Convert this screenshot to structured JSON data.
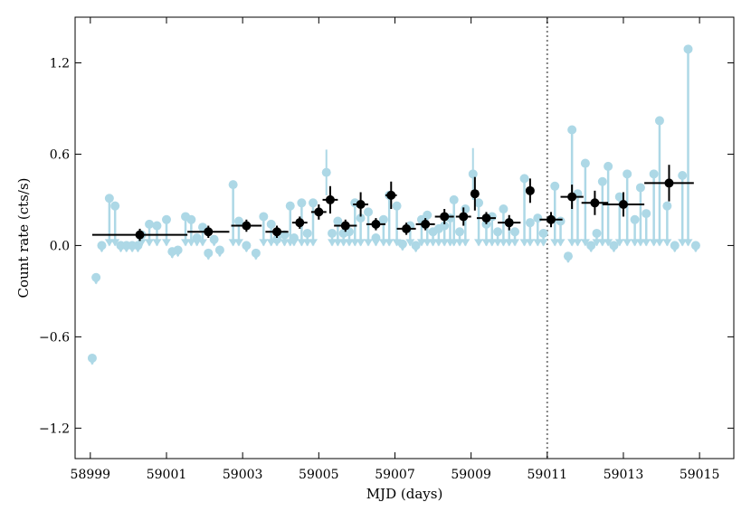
{
  "chart_data": {
    "type": "scatter",
    "title": "",
    "xlabel": "MJD (days)",
    "ylabel": "Count rate (cts/s)",
    "xlim": [
      58998.6,
      59015.9
    ],
    "ylim": [
      -1.4,
      1.5
    ],
    "xticks": [
      58999,
      59001,
      59003,
      59005,
      59007,
      59009,
      59011,
      59013,
      59015
    ],
    "xtick_labels": [
      "58999",
      "59001",
      "59003",
      "59005",
      "59007",
      "59009",
      "59011",
      "59013",
      "59015"
    ],
    "yticks": [
      -1.2,
      -0.6,
      0.0,
      0.6,
      1.2
    ],
    "ytick_labels": [
      "−1.2",
      "−0.6",
      "0.0",
      "0.6",
      "1.2"
    ],
    "vline_x": 59011,
    "colors": {
      "light": "#add8e6",
      "dark": "#000000",
      "vline": "#808080"
    },
    "series": [
      {
        "marker": "light-blue upper-limit points (downward arrows)",
        "points": [
          {
            "x": 59000.45,
            "y": 0.0,
            "limit": true
          },
          {
            "x": 59000.6,
            "y": 0.0,
            "limit": true
          },
          {
            "x": 59000.75,
            "y": 0.0,
            "limit": true
          },
          {
            "x": 59000.9,
            "y": 0.0,
            "limit": true
          }
        ]
      }
    ],
    "light_points": [
      {
        "x": 59000.55,
        "y": 0.0
      }
    ],
    "binned_points": [
      {
        "x": 59000.3,
        "y": 0.07,
        "xerr": 1.25,
        "yerr": 0.04
      },
      {
        "x": 59002.1,
        "y": 0.09,
        "xerr": 0.55,
        "yerr": 0.04
      },
      {
        "x": 59003.1,
        "y": 0.13,
        "xerr": 0.4,
        "yerr": 0.04
      },
      {
        "x": 59003.9,
        "y": 0.09,
        "xerr": 0.3,
        "yerr": 0.04
      },
      {
        "x": 59004.5,
        "y": 0.15,
        "xerr": 0.2,
        "yerr": 0.04
      },
      {
        "x": 59005.0,
        "y": 0.22,
        "xerr": 0.2,
        "yerr": 0.05
      },
      {
        "x": 59005.3,
        "y": 0.3,
        "xerr": 0.2,
        "yerr": 0.09
      },
      {
        "x": 59005.7,
        "y": 0.13,
        "xerr": 0.3,
        "yerr": 0.04
      },
      {
        "x": 59006.1,
        "y": 0.27,
        "xerr": 0.2,
        "yerr": 0.08
      },
      {
        "x": 59006.5,
        "y": 0.14,
        "xerr": 0.25,
        "yerr": 0.04
      },
      {
        "x": 59006.9,
        "y": 0.33,
        "xerr": 0.15,
        "yerr": 0.09
      },
      {
        "x": 59007.3,
        "y": 0.11,
        "xerr": 0.25,
        "yerr": 0.04
      },
      {
        "x": 59007.8,
        "y": 0.14,
        "xerr": 0.25,
        "yerr": 0.04
      },
      {
        "x": 59008.3,
        "y": 0.19,
        "xerr": 0.25,
        "yerr": 0.05
      },
      {
        "x": 59008.8,
        "y": 0.19,
        "xerr": 0.2,
        "yerr": 0.06
      },
      {
        "x": 59009.1,
        "y": 0.34,
        "xerr": 0.1,
        "yerr": 0.11
      },
      {
        "x": 59009.4,
        "y": 0.18,
        "xerr": 0.25,
        "yerr": 0.04
      },
      {
        "x": 59010.0,
        "y": 0.15,
        "xerr": 0.3,
        "yerr": 0.05
      },
      {
        "x": 59010.55,
        "y": 0.36,
        "xerr": 0.1,
        "yerr": 0.08
      },
      {
        "x": 59011.1,
        "y": 0.17,
        "xerr": 0.3,
        "yerr": 0.05
      },
      {
        "x": 59011.65,
        "y": 0.32,
        "xerr": 0.3,
        "yerr": 0.08
      },
      {
        "x": 59012.25,
        "y": 0.28,
        "xerr": 0.35,
        "yerr": 0.08
      },
      {
        "x": 59013.0,
        "y": 0.27,
        "xerr": 0.55,
        "yerr": 0.08
      },
      {
        "x": 59014.2,
        "y": 0.41,
        "xerr": 0.65,
        "yerr": 0.12
      }
    ],
    "raw_points": [
      {
        "x": 58999.05,
        "y": -0.74,
        "type": "ul"
      },
      {
        "x": 58999.15,
        "y": -0.21,
        "type": "ul"
      },
      {
        "x": 58999.3,
        "y": 0.0,
        "type": "ul"
      },
      {
        "x": 58999.5,
        "y": 0.31,
        "type": "ul"
      },
      {
        "x": 58999.65,
        "y": 0.26,
        "type": "ul"
      },
      {
        "x": 58999.8,
        "y": 0.0,
        "type": "ul"
      },
      {
        "x": 58999.95,
        "y": 0.0,
        "type": "ul"
      },
      {
        "x": 59000.1,
        "y": 0.0,
        "type": "ul"
      },
      {
        "x": 59000.25,
        "y": 0.0,
        "type": "ul"
      },
      {
        "x": 59000.35,
        "y": 0.07,
        "type": "ul"
      },
      {
        "x": 59000.55,
        "y": 0.14,
        "type": "ul"
      },
      {
        "x": 59000.75,
        "y": 0.13,
        "type": "ul"
      },
      {
        "x": 59001.0,
        "y": 0.17,
        "type": "ul"
      },
      {
        "x": 59001.15,
        "y": -0.04,
        "type": "ul"
      },
      {
        "x": 59001.3,
        "y": -0.03,
        "type": "ul"
      },
      {
        "x": 59001.5,
        "y": 0.19,
        "type": "ul"
      },
      {
        "x": 59001.65,
        "y": 0.17,
        "type": "ul"
      },
      {
        "x": 59001.8,
        "y": 0.05,
        "type": "ul"
      },
      {
        "x": 59001.95,
        "y": 0.12,
        "type": "ul"
      },
      {
        "x": 59002.1,
        "y": -0.05,
        "type": "ul"
      },
      {
        "x": 59002.25,
        "y": 0.04,
        "type": "ul"
      },
      {
        "x": 59002.4,
        "y": -0.03,
        "type": "ul"
      },
      {
        "x": 59002.75,
        "y": 0.4,
        "type": "ul"
      },
      {
        "x": 59002.9,
        "y": 0.16,
        "type": "ul"
      },
      {
        "x": 59003.1,
        "y": 0.0,
        "type": "ul"
      },
      {
        "x": 59003.35,
        "y": -0.05,
        "type": "ul"
      },
      {
        "x": 59003.55,
        "y": 0.19,
        "type": "ul"
      },
      {
        "x": 59003.75,
        "y": 0.14,
        "type": "ul"
      },
      {
        "x": 59003.9,
        "y": 0.04,
        "type": "ul"
      },
      {
        "x": 59004.1,
        "y": 0.07,
        "type": "ul"
      },
      {
        "x": 59004.25,
        "y": 0.26,
        "type": "ul"
      },
      {
        "x": 59004.35,
        "y": 0.05,
        "type": "ul"
      },
      {
        "x": 59004.55,
        "y": 0.28,
        "type": "ul"
      },
      {
        "x": 59004.7,
        "y": 0.08,
        "type": "ul"
      },
      {
        "x": 59004.85,
        "y": 0.28,
        "type": "ul"
      },
      {
        "x": 59005.2,
        "y": 0.48,
        "type": "err",
        "err": 0.15
      },
      {
        "x": 59005.35,
        "y": 0.08,
        "type": "ul"
      },
      {
        "x": 59005.5,
        "y": 0.16,
        "type": "ul"
      },
      {
        "x": 59005.65,
        "y": 0.08,
        "type": "ul"
      },
      {
        "x": 59005.8,
        "y": 0.09,
        "type": "ul"
      },
      {
        "x": 59005.95,
        "y": 0.28,
        "type": "ul"
      },
      {
        "x": 59006.1,
        "y": 0.18,
        "type": "ul"
      },
      {
        "x": 59006.3,
        "y": 0.22,
        "type": "ul"
      },
      {
        "x": 59006.5,
        "y": 0.05,
        "type": "ul"
      },
      {
        "x": 59006.7,
        "y": 0.17,
        "type": "ul"
      },
      {
        "x": 59006.85,
        "y": 0.33,
        "type": "ul"
      },
      {
        "x": 59007.05,
        "y": 0.26,
        "type": "ul"
      },
      {
        "x": 59007.2,
        "y": 0.01,
        "type": "ul"
      },
      {
        "x": 59007.4,
        "y": 0.13,
        "type": "ul"
      },
      {
        "x": 59007.55,
        "y": 0.0,
        "type": "ul"
      },
      {
        "x": 59007.7,
        "y": 0.17,
        "type": "ul"
      },
      {
        "x": 59007.85,
        "y": 0.2,
        "type": "ul"
      },
      {
        "x": 59008.0,
        "y": 0.09,
        "type": "ul"
      },
      {
        "x": 59008.15,
        "y": 0.11,
        "type": "ul"
      },
      {
        "x": 59008.3,
        "y": 0.13,
        "type": "ul"
      },
      {
        "x": 59008.45,
        "y": 0.18,
        "type": "ul"
      },
      {
        "x": 59008.55,
        "y": 0.3,
        "type": "ul"
      },
      {
        "x": 59008.7,
        "y": 0.09,
        "type": "ul"
      },
      {
        "x": 59008.85,
        "y": 0.24,
        "type": "ul"
      },
      {
        "x": 59009.05,
        "y": 0.47,
        "type": "err",
        "err": 0.17
      },
      {
        "x": 59009.2,
        "y": 0.28,
        "type": "ul"
      },
      {
        "x": 59009.4,
        "y": 0.14,
        "type": "ul"
      },
      {
        "x": 59009.55,
        "y": 0.19,
        "type": "ul"
      },
      {
        "x": 59009.7,
        "y": 0.09,
        "type": "ul"
      },
      {
        "x": 59009.85,
        "y": 0.24,
        "type": "ul"
      },
      {
        "x": 59010.0,
        "y": 0.15,
        "type": "ul"
      },
      {
        "x": 59010.15,
        "y": 0.09,
        "type": "ul"
      },
      {
        "x": 59010.4,
        "y": 0.44,
        "type": "ul"
      },
      {
        "x": 59010.55,
        "y": 0.15,
        "type": "ul"
      },
      {
        "x": 59010.75,
        "y": 0.18,
        "type": "ul"
      },
      {
        "x": 59010.9,
        "y": 0.08,
        "type": "ul"
      },
      {
        "x": 59011.2,
        "y": 0.39,
        "type": "ul"
      },
      {
        "x": 59011.35,
        "y": 0.16,
        "type": "ul"
      },
      {
        "x": 59011.55,
        "y": -0.07,
        "type": "ul"
      },
      {
        "x": 59011.65,
        "y": 0.76,
        "type": "ul"
      },
      {
        "x": 59011.8,
        "y": 0.34,
        "type": "ul"
      },
      {
        "x": 59012.0,
        "y": 0.54,
        "type": "ul"
      },
      {
        "x": 59012.15,
        "y": 0.0,
        "type": "ul"
      },
      {
        "x": 59012.3,
        "y": 0.08,
        "type": "ul"
      },
      {
        "x": 59012.45,
        "y": 0.42,
        "type": "ul"
      },
      {
        "x": 59012.6,
        "y": 0.52,
        "type": "ul"
      },
      {
        "x": 59012.75,
        "y": 0.0,
        "type": "ul"
      },
      {
        "x": 59012.9,
        "y": 0.32,
        "type": "ul"
      },
      {
        "x": 59013.1,
        "y": 0.47,
        "type": "ul"
      },
      {
        "x": 59013.3,
        "y": 0.17,
        "type": "ul"
      },
      {
        "x": 59013.45,
        "y": 0.38,
        "type": "ul"
      },
      {
        "x": 59013.6,
        "y": 0.21,
        "type": "ul"
      },
      {
        "x": 59013.8,
        "y": 0.47,
        "type": "ul"
      },
      {
        "x": 59013.95,
        "y": 0.82,
        "type": "ul"
      },
      {
        "x": 59014.15,
        "y": 0.26,
        "type": "ul"
      },
      {
        "x": 59014.35,
        "y": 0.0,
        "type": "ul"
      },
      {
        "x": 59014.55,
        "y": 0.46,
        "type": "ul"
      },
      {
        "x": 59014.7,
        "y": 1.29,
        "type": "ul"
      },
      {
        "x": 59014.9,
        "y": 0.0,
        "type": "ul"
      }
    ]
  }
}
